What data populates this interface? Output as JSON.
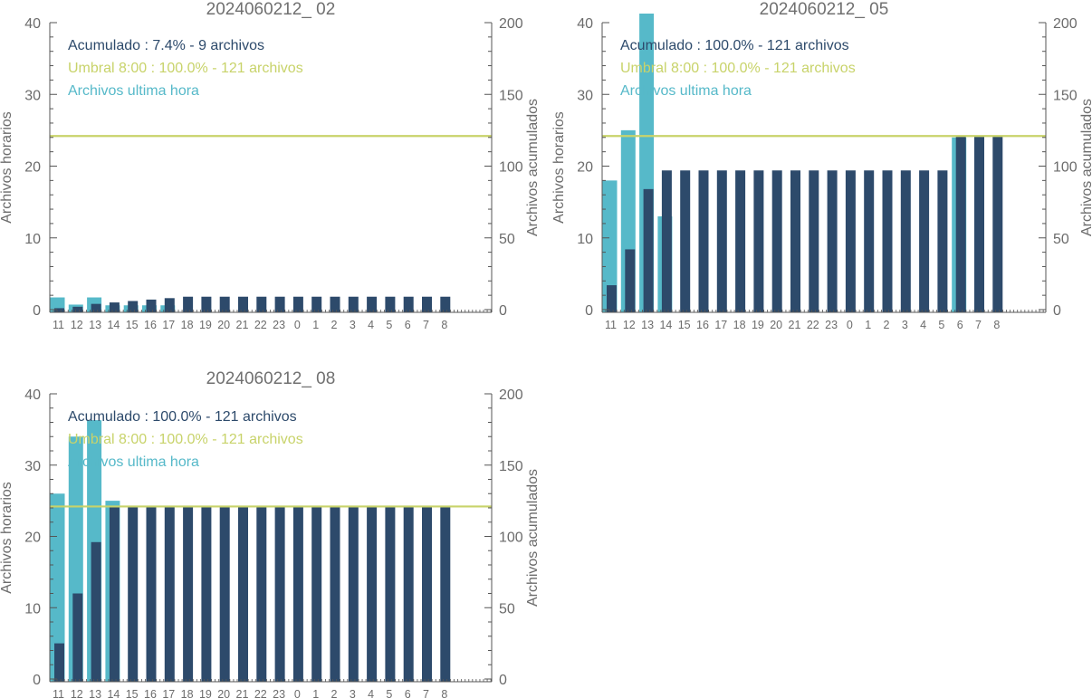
{
  "colors": {
    "hourly": "#56b9c9",
    "cumulative": "#2d4a6b",
    "threshold": "#c8d36a",
    "axis": "#555555",
    "text_axis": "#6b6b6b",
    "title": "#707070"
  },
  "legend_labels": {
    "hourly": "Archivos ultima hora"
  },
  "chart_data": [
    {
      "type": "bar",
      "title": "2024060212_ 02",
      "ylabel": "Archivos horarios",
      "y2label": "Archivos acumulados",
      "ylim": [
        0,
        40
      ],
      "y2lim": [
        0,
        200
      ],
      "yticks": [
        0,
        10,
        20,
        30,
        40
      ],
      "y2ticks": [
        0,
        50,
        100,
        150,
        200
      ],
      "categories": [
        "11",
        "12",
        "13",
        "14",
        "15",
        "16",
        "17",
        "18",
        "19",
        "20",
        "21",
        "22",
        "23",
        "0",
        "1",
        "2",
        "3",
        "4",
        "5",
        "6",
        "7",
        "8"
      ],
      "legend": {
        "cumulative": "Acumulado : 7.4% - 9 archivos",
        "threshold": "Umbral 8:00 : 100.0% - 121 archivos"
      },
      "threshold_value": 121,
      "series": [
        {
          "name": "Archivos ultima hora",
          "axis": "left",
          "values": [
            1.7,
            0.7,
            1.7,
            0.6,
            0.6,
            0.6,
            0.6,
            0,
            0,
            0,
            0,
            0,
            0,
            0,
            0,
            0,
            0,
            0,
            0,
            0,
            0,
            0
          ]
        },
        {
          "name": "Acumulado",
          "axis": "right",
          "values": [
            1,
            2,
            4,
            5,
            6,
            7,
            8,
            9,
            9,
            9,
            9,
            9,
            9,
            9,
            9,
            9,
            9,
            9,
            9,
            9,
            9,
            9
          ]
        }
      ]
    },
    {
      "type": "bar",
      "title": "2024060212_ 05",
      "ylabel": "Archivos horarios",
      "y2label": "Archivos acumulados",
      "ylim": [
        0,
        40
      ],
      "y2lim": [
        0,
        200
      ],
      "yticks": [
        0,
        10,
        20,
        30,
        40
      ],
      "y2ticks": [
        0,
        50,
        100,
        150,
        200
      ],
      "categories": [
        "11",
        "12",
        "13",
        "14",
        "15",
        "16",
        "17",
        "18",
        "19",
        "20",
        "21",
        "22",
        "23",
        "0",
        "1",
        "2",
        "3",
        "4",
        "5",
        "6",
        "7",
        "8"
      ],
      "legend": {
        "cumulative": "Acumulado : 100.0% - 121 archivos",
        "threshold": "Umbral 8:00 : 100.0% - 121 archivos"
      },
      "threshold_value": 121,
      "series": [
        {
          "name": "Archivos ultima hora",
          "axis": "left",
          "values": [
            18,
            25,
            41.5,
            13,
            0,
            0,
            0,
            0,
            0,
            0,
            0,
            0,
            0,
            0,
            0,
            0,
            0,
            0,
            0,
            24,
            0,
            0
          ]
        },
        {
          "name": "Acumulado",
          "axis": "right",
          "values": [
            17,
            42,
            84,
            97,
            97,
            97,
            97,
            97,
            97,
            97,
            97,
            97,
            97,
            97,
            97,
            97,
            97,
            97,
            97,
            121,
            121,
            121
          ]
        }
      ]
    },
    {
      "type": "bar",
      "title": "2024060212_ 08",
      "ylabel": "Archivos horarios",
      "y2label": "Archivos acumulados",
      "ylim": [
        0,
        40
      ],
      "y2lim": [
        0,
        200
      ],
      "yticks": [
        0,
        10,
        20,
        30,
        40
      ],
      "y2ticks": [
        0,
        50,
        100,
        150,
        200
      ],
      "categories": [
        "11",
        "12",
        "13",
        "14",
        "15",
        "16",
        "17",
        "18",
        "19",
        "20",
        "21",
        "22",
        "23",
        "0",
        "1",
        "2",
        "3",
        "4",
        "5",
        "6",
        "7",
        "8"
      ],
      "legend": {
        "cumulative": "Acumulado : 100.0% - 121 archivos",
        "threshold": "Umbral 8:00 : 100.0% - 121 archivos"
      },
      "threshold_value": 121,
      "series": [
        {
          "name": "Archivos ultima hora",
          "axis": "left",
          "values": [
            26,
            34,
            36.3,
            25,
            0,
            0,
            0,
            0,
            0,
            0,
            0,
            0,
            0,
            0,
            0,
            0,
            0,
            0,
            0,
            0,
            0,
            0
          ]
        },
        {
          "name": "Acumulado",
          "axis": "right",
          "values": [
            25,
            60,
            96,
            121,
            121,
            121,
            121,
            121,
            121,
            121,
            121,
            121,
            121,
            121,
            121,
            121,
            121,
            121,
            121,
            121,
            121,
            121
          ]
        }
      ]
    }
  ]
}
